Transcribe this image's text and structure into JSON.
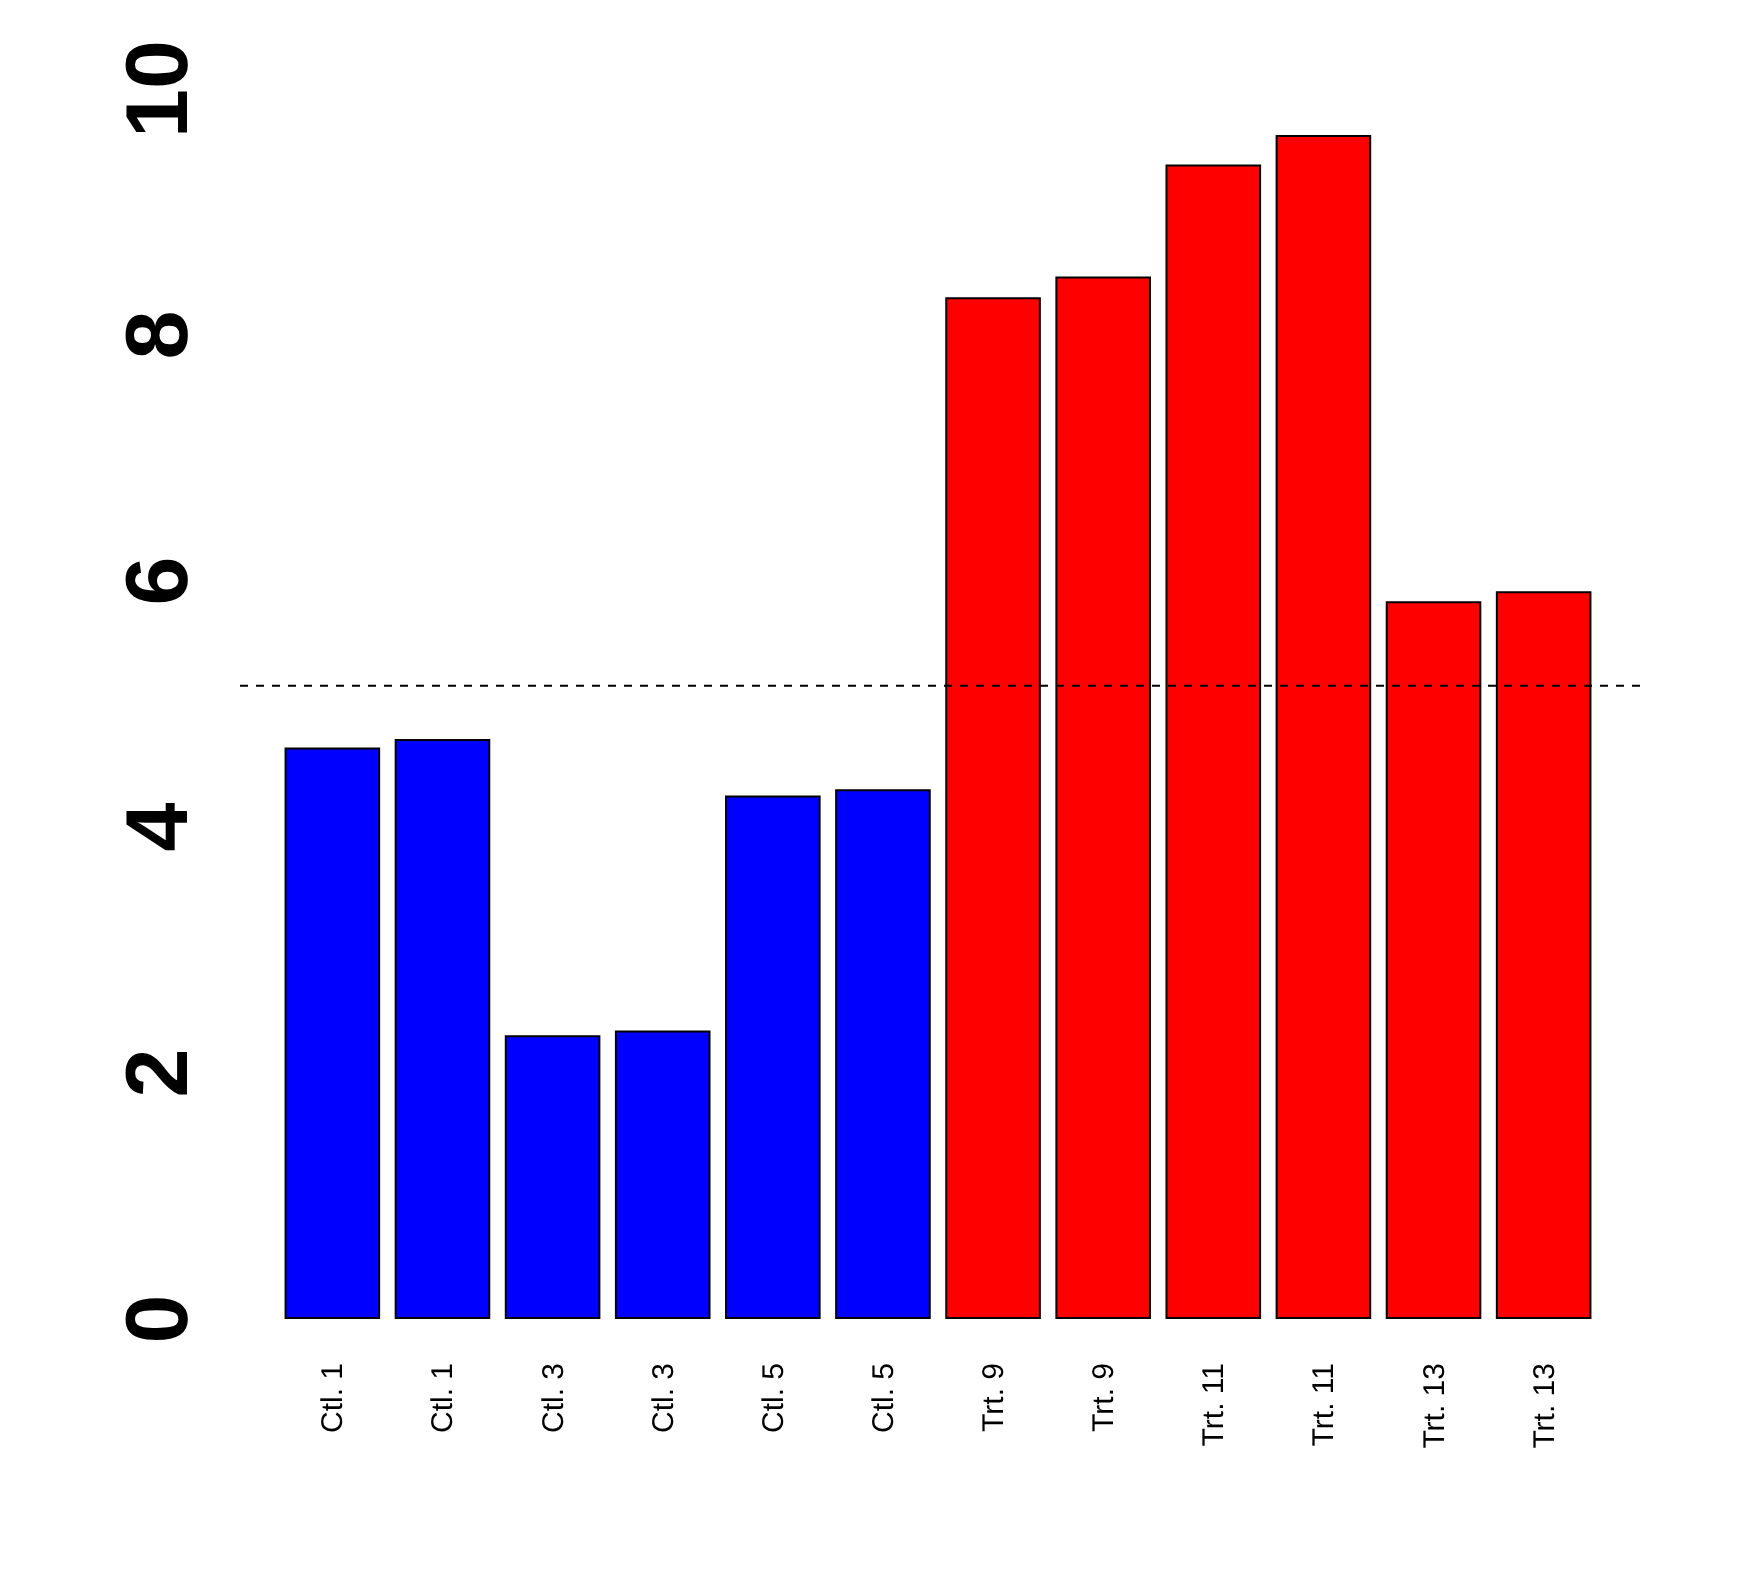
{
  "chart_data": {
    "type": "bar",
    "categories": [
      "Ctl. 1",
      "Ctl. 1",
      "Ctl. 3",
      "Ctl. 3",
      "Ctl. 5",
      "Ctl. 5",
      "Trt. 9",
      "Trt. 9",
      "Trt. 11",
      "Trt. 11",
      "Trt. 13",
      "Trt. 13"
    ],
    "values": [
      4.63,
      4.7,
      2.29,
      2.33,
      4.24,
      4.29,
      8.29,
      8.46,
      9.37,
      9.61,
      5.82,
      5.9
    ],
    "colors": [
      "#0000ff",
      "#0000ff",
      "#0000ff",
      "#0000ff",
      "#0000ff",
      "#0000ff",
      "#ff0000",
      "#ff0000",
      "#ff0000",
      "#ff0000",
      "#ff0000",
      "#ff0000"
    ],
    "ylim": [
      0,
      10
    ],
    "yticks": [
      0,
      2,
      4,
      6,
      8,
      10
    ],
    "grid": false,
    "ref_lines": [
      {
        "axis": "y",
        "value": 5.14,
        "line_style": "dashed",
        "color": "#000000"
      }
    ]
  }
}
